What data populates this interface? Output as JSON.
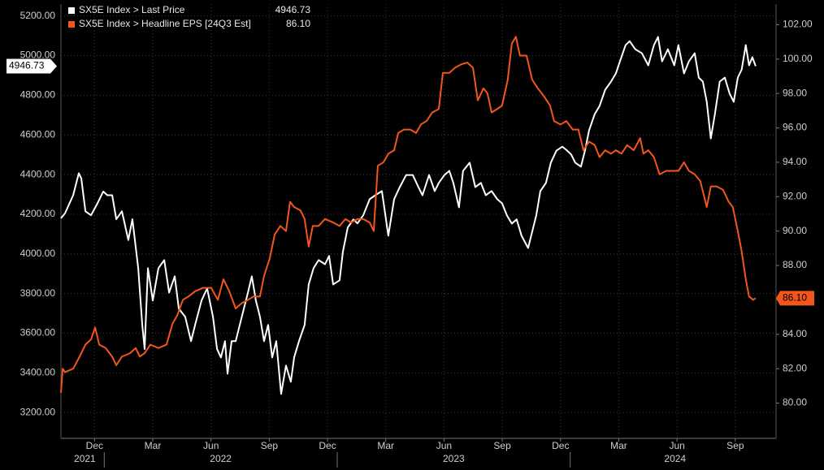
{
  "chart_data": {
    "type": "line",
    "grid": true,
    "legend_position": "top-left",
    "xlim": [
      -1.23,
      35.6
    ],
    "xticks": [
      {
        "value": 0.5,
        "label": "Dec"
      },
      {
        "value": 3.5,
        "label": "Mar"
      },
      {
        "value": 6.5,
        "label": "Jun"
      },
      {
        "value": 9.5,
        "label": "Sep"
      },
      {
        "value": 12.5,
        "label": "Dec"
      },
      {
        "value": 15.5,
        "label": "Mar"
      },
      {
        "value": 18.5,
        "label": "Jun"
      },
      {
        "value": 21.5,
        "label": "Sep"
      },
      {
        "value": 24.5,
        "label": "Dec"
      },
      {
        "value": 27.5,
        "label": "Mar"
      },
      {
        "value": 30.5,
        "label": "Jun"
      },
      {
        "value": 33.5,
        "label": "Sep"
      }
    ],
    "x_years": [
      {
        "value": 0,
        "label": "2021"
      },
      {
        "value": 7,
        "label": "2022"
      },
      {
        "value": 19,
        "label": "2023"
      },
      {
        "value": 30.4,
        "label": "2024"
      }
    ],
    "x_year_bounds": [
      1,
      13,
      25
    ],
    "ylim": [
      3070,
      5260
    ],
    "yticks": [
      {
        "value": 3200,
        "label": "3200.00"
      },
      {
        "value": 3400,
        "label": "3400.00"
      },
      {
        "value": 3600,
        "label": "3600.00"
      },
      {
        "value": 3800,
        "label": "3800.00"
      },
      {
        "value": 4000,
        "label": "4000.00"
      },
      {
        "value": 4200,
        "label": "4200.00"
      },
      {
        "value": 4400,
        "label": "4400.00"
      },
      {
        "value": 4600,
        "label": "4600.00"
      },
      {
        "value": 4800,
        "label": "4800.00"
      },
      {
        "value": 5000,
        "label": "5000.00"
      },
      {
        "value": 5200,
        "label": "5200.00"
      }
    ],
    "y2lim": [
      77.95,
      103.2
    ],
    "y2ticks": [
      {
        "value": 80,
        "label": "80.00"
      },
      {
        "value": 82,
        "label": "82.00"
      },
      {
        "value": 84,
        "label": "84.00"
      },
      {
        "value": 86,
        "label": "86.00"
      },
      {
        "value": 88,
        "label": "88.00"
      },
      {
        "value": 90,
        "label": "90.00"
      },
      {
        "value": 92,
        "label": "92.00"
      },
      {
        "value": 94,
        "label": "94.00"
      },
      {
        "value": 96,
        "label": "96.00"
      },
      {
        "value": 98,
        "label": "98.00"
      },
      {
        "value": 100,
        "label": "100.00"
      },
      {
        "value": 102,
        "label": "102.00"
      }
    ],
    "series": [
      {
        "name": "SX5E Index > Last Price",
        "color": "#ffffff",
        "axis": "y",
        "last_label": "4946.73",
        "x": [
          -1.23,
          -1.02,
          -0.6,
          -0.31,
          -0.18,
          0.03,
          0.32,
          0.65,
          0.95,
          1.16,
          1.41,
          1.62,
          1.91,
          2.24,
          2.45,
          2.75,
          2.96,
          3.08,
          3.25,
          3.5,
          3.79,
          4.09,
          4.34,
          4.63,
          4.84,
          5.17,
          5.47,
          5.68,
          6.01,
          6.3,
          6.6,
          6.81,
          7.01,
          7.22,
          7.35,
          7.56,
          7.77,
          7.98,
          8.19,
          8.4,
          8.6,
          8.81,
          9.02,
          9.23,
          9.44,
          9.65,
          9.86,
          10.11,
          10.36,
          10.61,
          10.78,
          11.03,
          11.32,
          11.53,
          11.78,
          12.04,
          12.37,
          12.58,
          12.79,
          13.12,
          13.29,
          13.54,
          13.83,
          14.04,
          14.34,
          14.67,
          14.96,
          15.3,
          15.63,
          15.93,
          16.22,
          16.55,
          16.89,
          17.18,
          17.39,
          17.73,
          18.02,
          18.23,
          18.52,
          18.77,
          18.98,
          19.27,
          19.48,
          19.82,
          20.11,
          20.4,
          20.65,
          20.95,
          21.24,
          21.49,
          21.74,
          21.99,
          22.24,
          22.49,
          22.83,
          23.04,
          23.25,
          23.46,
          23.75,
          24.0,
          24.29,
          24.59,
          24.84,
          25.05,
          25.26,
          25.55,
          25.76,
          25.97,
          26.26,
          26.51,
          26.8,
          27.1,
          27.35,
          27.56,
          27.85,
          28.06,
          28.35,
          28.69,
          29.02,
          29.31,
          29.52,
          29.73,
          30.03,
          30.36,
          30.57,
          30.86,
          31.11,
          31.41,
          31.62,
          31.83,
          32.03,
          32.24,
          32.45,
          32.7,
          32.96,
          33.21,
          33.42,
          33.63,
          33.83,
          34.04,
          34.21,
          34.38,
          34.55
        ],
        "values": [
          4180,
          4205,
          4296,
          4407,
          4380,
          4215,
          4195,
          4255,
          4315,
          4296,
          4296,
          4175,
          4215,
          4070,
          4175,
          3928,
          3640,
          3520,
          3928,
          3765,
          3928,
          3969,
          3805,
          3887,
          3724,
          3683,
          3560,
          3642,
          3765,
          3826,
          3683,
          3520,
          3478,
          3560,
          3396,
          3560,
          3560,
          3642,
          3724,
          3805,
          3887,
          3765,
          3683,
          3560,
          3642,
          3478,
          3560,
          3294,
          3437,
          3355,
          3478,
          3560,
          3642,
          3846,
          3928,
          3969,
          3948,
          3990,
          3846,
          3867,
          4010,
          4133,
          4174,
          4154,
          4195,
          4276,
          4296,
          4317,
          4092,
          4276,
          4337,
          4398,
          4398,
          4337,
          4296,
          4398,
          4317,
          4358,
          4398,
          4419,
          4358,
          4235,
          4419,
          4460,
          4337,
          4358,
          4296,
          4317,
          4276,
          4255,
          4194,
          4153,
          4174,
          4092,
          4030,
          4112,
          4194,
          4317,
          4358,
          4460,
          4521,
          4541,
          4521,
          4501,
          4460,
          4440,
          4521,
          4623,
          4705,
          4746,
          4828,
          4869,
          4910,
          4971,
          5053,
          5073,
          5032,
          5012,
          4951,
          5053,
          5094,
          4971,
          5032,
          4951,
          5053,
          4910,
          4971,
          5012,
          4889,
          4869,
          4767,
          4582,
          4705,
          4869,
          4889,
          4808,
          4767,
          4889,
          4930,
          5053,
          4951,
          4992,
          4946.73
        ]
      },
      {
        "name": "SX5E Index > Headline EPS [24Q3 Est]",
        "color": "#f2561d",
        "axis": "y2",
        "last_label": "86.10",
        "x": [
          -1.23,
          -1.14,
          -1.02,
          -0.6,
          -0.27,
          0.03,
          0.32,
          0.53,
          0.74,
          1.07,
          1.41,
          1.62,
          1.91,
          2.33,
          2.62,
          2.83,
          3.08,
          3.37,
          3.79,
          4.21,
          4.51,
          4.76,
          5.05,
          5.34,
          5.68,
          6.09,
          6.51,
          6.85,
          7.14,
          7.44,
          7.77,
          8.07,
          8.4,
          8.69,
          9.02,
          9.23,
          9.52,
          9.78,
          10.07,
          10.36,
          10.57,
          10.78,
          11.11,
          11.32,
          11.53,
          11.74,
          12.04,
          12.37,
          12.79,
          13.12,
          13.42,
          13.71,
          14.04,
          14.34,
          14.67,
          14.88,
          15.09,
          15.38,
          15.63,
          15.93,
          16.14,
          16.43,
          16.77,
          17.06,
          17.31,
          17.6,
          17.9,
          18.23,
          18.44,
          18.77,
          19.07,
          19.4,
          19.69,
          19.99,
          20.24,
          20.53,
          20.74,
          20.95,
          21.24,
          21.49,
          21.78,
          21.99,
          22.2,
          22.41,
          22.75,
          23.04,
          23.33,
          23.67,
          23.96,
          24.17,
          24.5,
          24.8,
          25.13,
          25.42,
          25.68,
          25.97,
          26.26,
          26.51,
          26.8,
          27.1,
          27.35,
          27.64,
          27.93,
          28.27,
          28.6,
          28.77,
          29.02,
          29.31,
          29.6,
          29.94,
          30.27,
          30.57,
          30.86,
          31.11,
          31.41,
          31.7,
          32.03,
          32.24,
          32.54,
          32.87,
          33.16,
          33.37,
          33.63,
          33.83,
          34.04,
          34.21,
          34.42,
          34.55
        ],
        "values": [
          80.6,
          82.0,
          81.8,
          82.0,
          82.7,
          83.4,
          83.7,
          84.4,
          83.4,
          83.2,
          82.7,
          82.2,
          82.7,
          82.9,
          83.2,
          82.7,
          82.9,
          83.4,
          83.2,
          83.4,
          84.6,
          85.1,
          86.0,
          86.2,
          86.5,
          86.7,
          86.7,
          86.0,
          87.2,
          86.5,
          85.5,
          85.8,
          86.0,
          86.2,
          86.2,
          87.4,
          88.4,
          89.8,
          90.3,
          90.0,
          91.7,
          91.4,
          91.2,
          90.7,
          89.1,
          90.3,
          90.3,
          90.7,
          90.5,
          90.3,
          90.7,
          90.5,
          90.7,
          90.7,
          90.5,
          90.0,
          93.8,
          94.0,
          94.5,
          94.7,
          95.7,
          95.9,
          95.9,
          95.7,
          96.2,
          96.4,
          96.9,
          97.1,
          99.2,
          99.2,
          99.5,
          99.7,
          99.8,
          99.5,
          97.6,
          98.3,
          98.0,
          96.9,
          97.1,
          97.3,
          98.8,
          100.9,
          101.3,
          100.2,
          100.2,
          98.8,
          98.3,
          97.8,
          97.3,
          96.4,
          96.2,
          96.4,
          95.9,
          95.9,
          94.7,
          95.2,
          95.0,
          94.3,
          94.7,
          94.5,
          94.7,
          94.5,
          95.0,
          94.7,
          95.4,
          94.5,
          94.7,
          94.3,
          93.3,
          93.5,
          93.5,
          93.5,
          94.0,
          93.5,
          93.3,
          92.9,
          91.4,
          92.6,
          92.6,
          92.4,
          91.7,
          91.4,
          90.0,
          88.8,
          87.2,
          86.2,
          86.0,
          86.1
        ]
      }
    ]
  }
}
